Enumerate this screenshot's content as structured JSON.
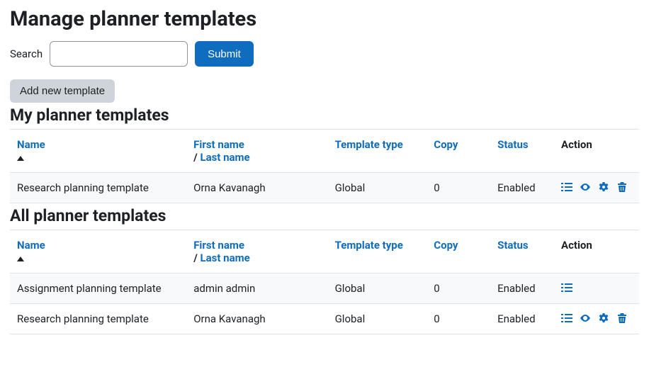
{
  "page_title": "Manage planner templates",
  "search": {
    "label": "Search",
    "submit_label": "Submit"
  },
  "add_button_label": "Add new template",
  "columns": {
    "name": "Name",
    "first_name": "First name",
    "last_name": "Last name",
    "template_type": "Template type",
    "copy": "Copy",
    "status": "Status",
    "action": "Action"
  },
  "separator_slash": "/",
  "colors": {
    "link": "#0f6cbf",
    "icon": "#0f6cbf"
  },
  "my_section": {
    "heading": "My planner templates",
    "rows": [
      {
        "name": "Research planning template",
        "owner": "Orna Kavanagh",
        "type": "Global",
        "copy": "0",
        "status": "Enabled",
        "actions": [
          "list",
          "eye",
          "gear",
          "trash"
        ]
      }
    ]
  },
  "all_section": {
    "heading": "All planner templates",
    "rows": [
      {
        "name": "Assignment planning template",
        "owner": "admin admin",
        "type": "Global",
        "copy": "0",
        "status": "Enabled",
        "actions": [
          "list"
        ]
      },
      {
        "name": "Research planning template",
        "owner": "Orna Kavanagh",
        "type": "Global",
        "copy": "0",
        "status": "Enabled",
        "actions": [
          "list",
          "eye",
          "gear",
          "trash"
        ]
      }
    ]
  }
}
